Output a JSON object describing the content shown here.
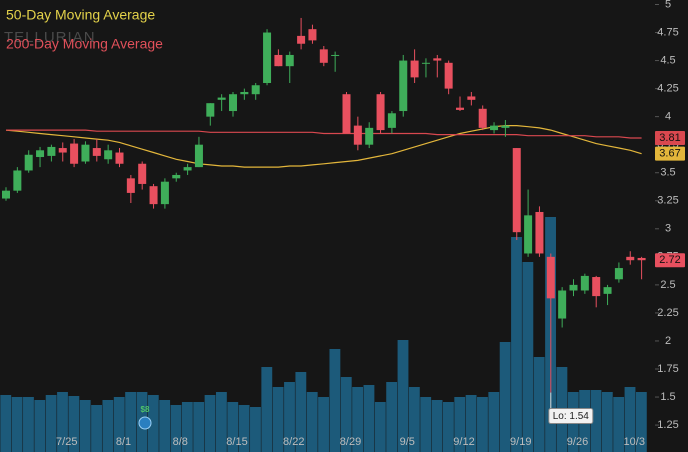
{
  "chart_data": {
    "type": "candlestick",
    "watermark": "TELLURIAN",
    "categories": [
      null,
      null,
      null,
      null,
      null,
      "7/25",
      null,
      null,
      null,
      null,
      "8/1",
      null,
      null,
      null,
      null,
      "8/8",
      null,
      null,
      null,
      null,
      "8/15",
      null,
      null,
      null,
      null,
      "8/22",
      null,
      null,
      null,
      null,
      "8/29",
      null,
      null,
      null,
      null,
      "9/5",
      null,
      null,
      null,
      null,
      "9/12",
      null,
      null,
      null,
      null,
      "9/19",
      null,
      null,
      null,
      null,
      "9/26",
      null,
      null,
      null,
      null,
      "10/3",
      null
    ],
    "open": [
      3.27,
      3.34,
      3.52,
      3.64,
      3.65,
      3.72,
      3.76,
      3.6,
      3.72,
      3.62,
      3.68,
      3.45,
      3.58,
      3.38,
      3.22,
      3.45,
      3.52,
      3.55,
      4.0,
      4.15,
      4.05,
      4.2,
      4.2,
      4.3,
      4.55,
      4.45,
      4.72,
      4.78,
      4.6,
      4.55,
      4.2,
      3.92,
      3.75,
      4.2,
      3.9,
      4.05,
      4.5,
      4.48,
      4.52,
      4.48,
      4.08,
      4.18,
      4.07,
      3.88,
      3.9,
      3.72,
      2.78,
      3.15,
      2.75,
      2.2,
      2.45,
      2.45,
      2.57,
      2.42,
      2.55,
      2.75,
      2.74
    ],
    "high": [
      3.37,
      3.55,
      3.7,
      3.73,
      3.75,
      3.77,
      3.8,
      3.78,
      3.8,
      3.75,
      3.72,
      3.48,
      3.6,
      3.4,
      3.45,
      3.5,
      3.58,
      3.82,
      4.12,
      4.2,
      4.22,
      4.25,
      4.3,
      4.78,
      4.6,
      4.58,
      4.88,
      4.82,
      4.63,
      4.58,
      4.22,
      4.0,
      3.95,
      4.22,
      4.05,
      4.55,
      4.6,
      4.52,
      4.55,
      4.5,
      4.18,
      4.22,
      4.1,
      3.95,
      3.97,
      3.72,
      3.35,
      3.2,
      2.78,
      2.48,
      2.55,
      2.6,
      2.58,
      2.5,
      2.7,
      2.8,
      2.75
    ],
    "low": [
      3.25,
      3.32,
      3.5,
      3.55,
      3.6,
      3.6,
      3.55,
      3.58,
      3.6,
      3.58,
      3.55,
      3.23,
      3.35,
      3.18,
      3.18,
      3.42,
      3.48,
      3.55,
      3.92,
      4.05,
      4.0,
      4.15,
      4.15,
      4.28,
      4.45,
      4.3,
      4.6,
      4.65,
      4.45,
      4.4,
      3.85,
      3.7,
      3.72,
      3.85,
      3.85,
      4.0,
      4.3,
      4.35,
      4.35,
      4.2,
      4.05,
      4.1,
      3.88,
      3.85,
      3.82,
      2.9,
      2.75,
      2.75,
      1.54,
      2.12,
      2.4,
      2.42,
      2.3,
      2.32,
      2.52,
      2.68,
      2.55
    ],
    "close": [
      3.34,
      3.52,
      3.66,
      3.7,
      3.73,
      3.68,
      3.58,
      3.75,
      3.65,
      3.7,
      3.58,
      3.32,
      3.4,
      3.22,
      3.42,
      3.48,
      3.55,
      3.75,
      4.12,
      4.17,
      4.2,
      4.22,
      4.28,
      4.75,
      4.45,
      4.55,
      4.65,
      4.68,
      4.48,
      4.55,
      3.85,
      3.75,
      3.9,
      3.88,
      4.03,
      4.5,
      4.35,
      4.48,
      4.5,
      4.25,
      4.06,
      4.15,
      3.9,
      3.92,
      3.92,
      2.97,
      3.12,
      2.78,
      2.38,
      2.45,
      2.5,
      2.58,
      2.4,
      2.48,
      2.65,
      2.72,
      2.72
    ],
    "up_color": "#3fae5a",
    "down_color": "#e8505f",
    "volume": {
      "color": "#1c5a7a",
      "values": [
        57,
        55,
        55,
        52,
        57,
        60,
        56,
        52,
        47,
        52,
        55,
        60,
        60,
        57,
        52,
        47,
        50,
        50,
        57,
        60,
        50,
        47,
        45,
        85,
        65,
        70,
        80,
        60,
        55,
        103,
        75,
        65,
        67,
        50,
        70,
        112,
        65,
        55,
        52,
        50,
        55,
        57,
        55,
        60,
        110,
        215,
        190,
        95,
        235,
        85,
        60,
        62,
        62,
        60,
        55,
        65,
        60
      ]
    },
    "series": [
      {
        "name": "50-Day Moving Average",
        "color": "#e3b63b",
        "values": [
          3.88,
          3.87,
          3.86,
          3.85,
          3.84,
          3.83,
          3.82,
          3.81,
          3.8,
          3.79,
          3.77,
          3.74,
          3.71,
          3.68,
          3.65,
          3.62,
          3.6,
          3.58,
          3.57,
          3.56,
          3.56,
          3.55,
          3.55,
          3.55,
          3.55,
          3.56,
          3.56,
          3.57,
          3.58,
          3.59,
          3.6,
          3.61,
          3.63,
          3.65,
          3.67,
          3.7,
          3.73,
          3.76,
          3.79,
          3.82,
          3.85,
          3.87,
          3.89,
          3.91,
          3.92,
          3.92,
          3.91,
          3.9,
          3.88,
          3.85,
          3.82,
          3.79,
          3.76,
          3.74,
          3.72,
          3.7,
          3.67
        ]
      },
      {
        "name": "200-Day Moving Average",
        "color": "#d9484f",
        "values": [
          3.88,
          3.88,
          3.88,
          3.88,
          3.88,
          3.88,
          3.88,
          3.88,
          3.87,
          3.87,
          3.87,
          3.87,
          3.87,
          3.87,
          3.87,
          3.87,
          3.87,
          3.87,
          3.86,
          3.86,
          3.86,
          3.86,
          3.86,
          3.86,
          3.86,
          3.86,
          3.86,
          3.86,
          3.85,
          3.85,
          3.85,
          3.85,
          3.85,
          3.85,
          3.85,
          3.85,
          3.85,
          3.85,
          3.84,
          3.84,
          3.84,
          3.84,
          3.84,
          3.84,
          3.84,
          3.84,
          3.83,
          3.83,
          3.83,
          3.83,
          3.83,
          3.83,
          3.82,
          3.82,
          3.82,
          3.81,
          3.81
        ]
      }
    ],
    "annotation": "Lo: 1.54",
    "event_label": "$8",
    "ylim": [
      1.01,
      5.04
    ],
    "yticks": [
      5,
      4.75,
      4.5,
      4.25,
      4,
      3.75,
      3.5,
      3.25,
      3,
      2.75,
      2.5,
      2.25,
      2,
      1.75,
      1.5,
      1.25
    ],
    "grid": false
  }
}
